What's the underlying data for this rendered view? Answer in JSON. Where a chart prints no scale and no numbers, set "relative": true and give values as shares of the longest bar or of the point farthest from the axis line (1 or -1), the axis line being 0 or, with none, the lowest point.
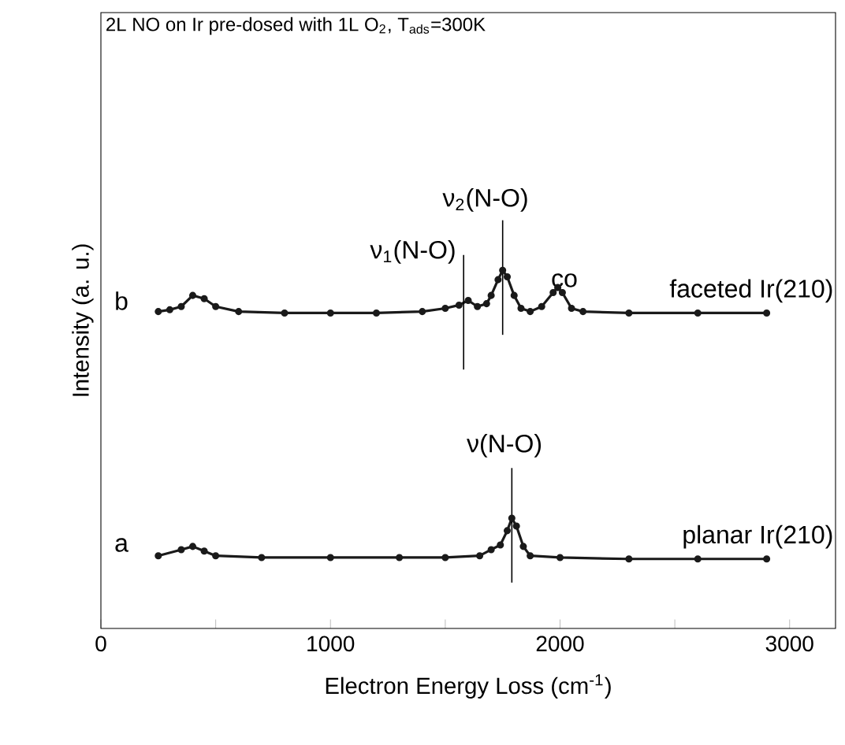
{
  "chart_data": {
    "type": "line",
    "title": "2L NO on Ir pre-dosed with 1L O$_{2}$, T$_{ads}$=300K",
    "xlabel": "Electron Energy Loss (cm$^{-1}$)",
    "ylabel": "Intensity (a. u.)",
    "relative": true,
    "xlim": [
      0,
      3200
    ],
    "xticks": [
      0,
      {
        "value": 500,
        "label": null
      },
      1000,
      {
        "value": 1500,
        "label": null
      },
      2000,
      {
        "value": 2500,
        "label": null
      },
      3000
    ],
    "marker": "circle",
    "series": [
      {
        "name": "planar Ir(210)",
        "color": "#1a1a1a",
        "x": [
          250,
          350,
          400,
          450,
          500,
          700,
          1000,
          1300,
          1500,
          1650,
          1700,
          1740,
          1770,
          1790,
          1810,
          1840,
          1870,
          2000,
          2300,
          2600,
          2900
        ],
        "values": [
          0.203,
          0.22,
          0.229,
          0.216,
          0.203,
          0.198,
          0.198,
          0.198,
          0.198,
          0.203,
          0.22,
          0.233,
          0.273,
          0.308,
          0.286,
          0.229,
          0.203,
          0.198,
          0.194,
          0.194,
          0.194
        ]
      },
      {
        "name": "faceted Ir(210)",
        "color": "#1a1a1a",
        "x": [
          250,
          300,
          350,
          400,
          450,
          500,
          600,
          800,
          1000,
          1200,
          1400,
          1500,
          1560,
          1600,
          1640,
          1680,
          1700,
          1730,
          1750,
          1770,
          1800,
          1830,
          1870,
          1920,
          1970,
          1990,
          2010,
          2050,
          2100,
          2300,
          2600,
          2900
        ],
        "values": [
          0.885,
          0.89,
          0.899,
          0.93,
          0.921,
          0.899,
          0.885,
          0.881,
          0.881,
          0.881,
          0.885,
          0.894,
          0.903,
          0.916,
          0.899,
          0.907,
          0.93,
          0.974,
          1.0,
          0.982,
          0.93,
          0.894,
          0.885,
          0.899,
          0.938,
          0.952,
          0.938,
          0.894,
          0.885,
          0.881,
          0.881,
          0.881
        ]
      }
    ],
    "ref_lines": [
      {
        "axis": "x",
        "value": 1580,
        "color": "#000000",
        "label": "ν$_{1}$(N-O)"
      },
      {
        "axis": "x",
        "value": 1750,
        "color": "#000000",
        "label": "ν$_{2}$(N-O)"
      },
      {
        "axis": "x",
        "value": 1790,
        "color": "#000000",
        "label": "ν(N-O)"
      }
    ],
    "annotations": [
      "co",
      "b",
      "a"
    ]
  }
}
